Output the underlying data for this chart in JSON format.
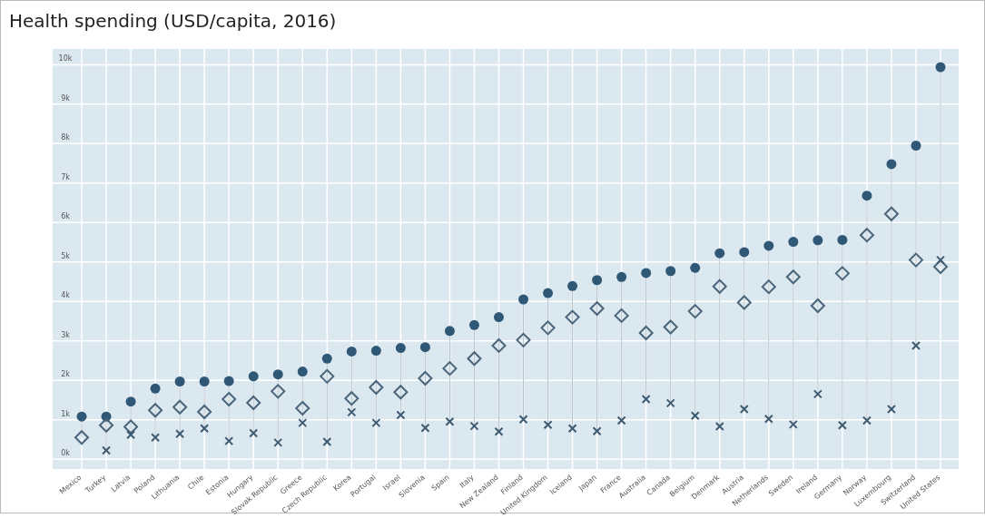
{
  "chart_data": {
    "type": "scatter",
    "title": "Health spending (USD/capita, 2016)",
    "categories": [
      "Mexico",
      "Turkey",
      "Latvia",
      "Poland",
      "Lithuania",
      "Chile",
      "Estonia",
      "Hungary",
      "Slovak Republic",
      "Greece",
      "Czech Republic",
      "Korea",
      "Portugal",
      "Israel",
      "Slovenia",
      "Spain",
      "Italy",
      "New Zealand",
      "Finland",
      "United Kingdom",
      "Iceland",
      "Japan",
      "France",
      "Australia",
      "Canada",
      "Belgium",
      "Denmark",
      "Austria",
      "Netherlands",
      "Sweden",
      "Ireland",
      "Germany",
      "Norway",
      "Luxembourg",
      "Switzerland",
      "United States"
    ],
    "series": [
      {
        "color": "#2f5877",
        "marker": "circle",
        "values": [
          1080,
          1080,
          1460,
          1790,
          1970,
          1970,
          1980,
          2100,
          2150,
          2220,
          2550,
          2730,
          2750,
          2820,
          2840,
          3250,
          3400,
          3600,
          4050,
          4210,
          4390,
          4540,
          4620,
          4720,
          4770,
          4850,
          5220,
          5250,
          5410,
          5510,
          5550,
          5560,
          6680,
          7480,
          7950,
          9940
        ]
      },
      {
        "color": "#4a6479",
        "marker": "diamond",
        "values": [
          550,
          860,
          820,
          1240,
          1320,
          1200,
          1520,
          1430,
          1720,
          1290,
          2100,
          1540,
          1820,
          1700,
          2050,
          2300,
          2550,
          2880,
          3020,
          3330,
          3600,
          3820,
          3640,
          3200,
          3350,
          3750,
          4380,
          3970,
          4370,
          4620,
          3890,
          4710,
          5680,
          6220,
          5050,
          4880
        ]
      },
      {
        "color": "#3e5a70",
        "marker": "cross",
        "values": [
          null,
          220,
          620,
          550,
          640,
          780,
          460,
          660,
          420,
          920,
          440,
          1190,
          920,
          1120,
          790,
          950,
          840,
          700,
          1010,
          870,
          780,
          710,
          980,
          1520,
          1420,
          1100,
          830,
          1270,
          1020,
          880,
          1650,
          860,
          980,
          1270,
          2880,
          5050
        ]
      }
    ],
    "ylim": [
      -250,
      10400
    ],
    "yticks": [
      {
        "value": 0,
        "label": "0k"
      },
      {
        "value": 1000,
        "label": "1k"
      },
      {
        "value": 2000,
        "label": "2k"
      },
      {
        "value": 3000,
        "label": "3k"
      },
      {
        "value": 4000,
        "label": "4k"
      },
      {
        "value": 5000,
        "label": "5k"
      },
      {
        "value": 6000,
        "label": "6k"
      },
      {
        "value": 7000,
        "label": "7k"
      },
      {
        "value": 8000,
        "label": "8k"
      },
      {
        "value": 9000,
        "label": "9k"
      },
      {
        "value": 10000,
        "label": "10k"
      }
    ],
    "grid": true
  }
}
